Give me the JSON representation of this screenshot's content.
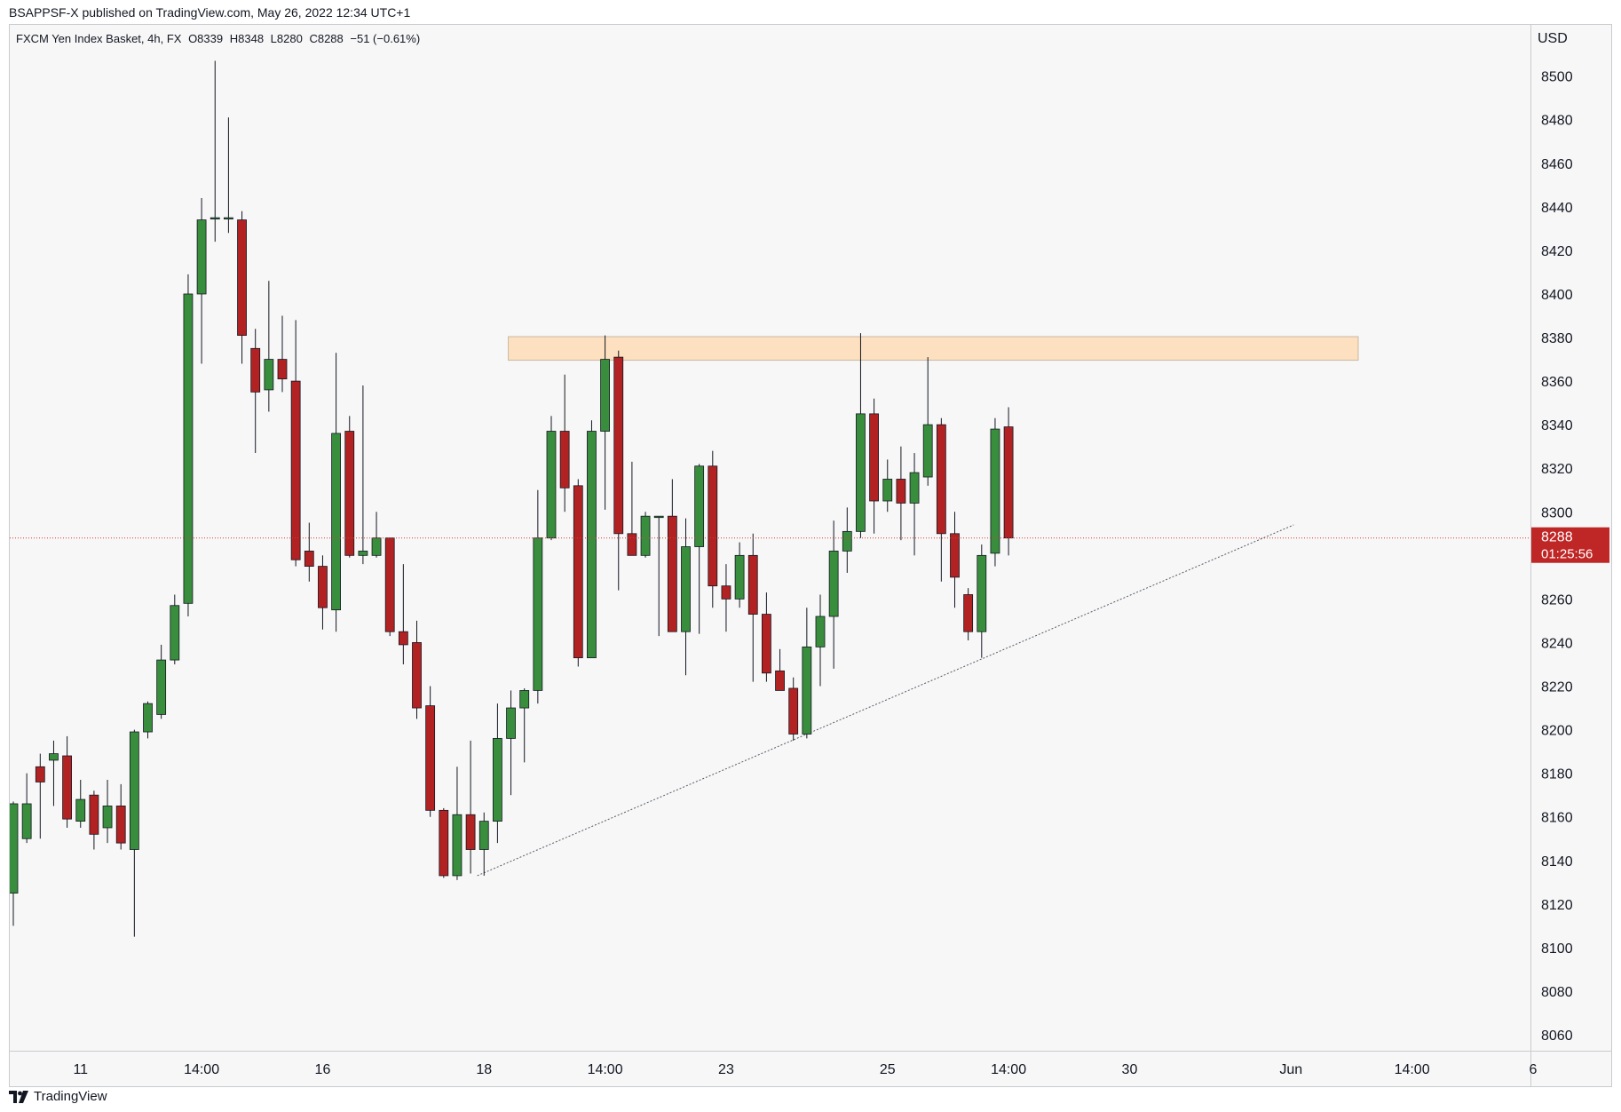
{
  "header": {
    "text": "BSAPPSF-X published on TradingView.com, May 26, 2022 12:34 UTC+1"
  },
  "legend": {
    "symbol": "FXCM Yen Index Basket, 4h, FX",
    "open": "O8339",
    "high": "H8348",
    "low": "L8280",
    "close": "C8288",
    "change": "−51 (−0.61%)"
  },
  "price_axis": {
    "currency": "USD"
  },
  "last_price": {
    "value": "8288",
    "countdown": "01:25:56"
  },
  "footer": {
    "brand": "TradingView"
  },
  "colors": {
    "up": "#388e3c",
    "down": "#b22222",
    "zone_fill": "#fde0bf",
    "zone_border": "#c9b8a3",
    "last_price_line": "#d43d3d",
    "background": "#f7f7f7"
  },
  "chart_data": {
    "type": "candlestick",
    "ylim": [
      8050,
      8520
    ],
    "y_ticks": [
      8060,
      8080,
      8100,
      8120,
      8140,
      8160,
      8180,
      8200,
      8220,
      8240,
      8260,
      8280,
      8300,
      8320,
      8340,
      8360,
      8380,
      8400,
      8420,
      8440,
      8460,
      8480,
      8500
    ],
    "x_ticks": [
      {
        "label": "11",
        "bar": 5
      },
      {
        "label": "14:00",
        "bar": 14
      },
      {
        "label": "16",
        "bar": 23
      },
      {
        "label": "18",
        "bar": 35
      },
      {
        "label": "14:00",
        "bar": 44
      },
      {
        "label": "23",
        "bar": 53
      },
      {
        "label": "25",
        "bar": 65
      },
      {
        "label": "14:00",
        "bar": 74
      },
      {
        "label": "30",
        "bar": 83
      },
      {
        "label": "Jun",
        "bar": 95
      },
      {
        "label": "14:00",
        "bar": 104
      },
      {
        "label": "6",
        "bar": 113
      }
    ],
    "candles": [
      {
        "o": 8125,
        "h": 8167,
        "l": 8110,
        "c": 8166
      },
      {
        "o": 8150,
        "h": 8180,
        "l": 8148,
        "c": 8166
      },
      {
        "o": 8183,
        "h": 8189,
        "l": 8150,
        "c": 8176
      },
      {
        "o": 8186,
        "h": 8195,
        "l": 8165,
        "c": 8189
      },
      {
        "o": 8188,
        "h": 8197,
        "l": 8155,
        "c": 8159
      },
      {
        "o": 8158,
        "h": 8177,
        "l": 8155,
        "c": 8168
      },
      {
        "o": 8170,
        "h": 8172,
        "l": 8145,
        "c": 8152
      },
      {
        "o": 8155,
        "h": 8177,
        "l": 8148,
        "c": 8165
      },
      {
        "o": 8165,
        "h": 8175,
        "l": 8145,
        "c": 8148
      },
      {
        "o": 8145,
        "h": 8200,
        "l": 8105,
        "c": 8199
      },
      {
        "o": 8199,
        "h": 8213,
        "l": 8196,
        "c": 8212
      },
      {
        "o": 8207,
        "h": 8239,
        "l": 8205,
        "c": 8232
      },
      {
        "o": 8232,
        "h": 8262,
        "l": 8230,
        "c": 8257
      },
      {
        "o": 8258,
        "h": 8409,
        "l": 8252,
        "c": 8400
      },
      {
        "o": 8400,
        "h": 8444,
        "l": 8368,
        "c": 8434
      },
      {
        "o": 8435,
        "h": 8507,
        "l": 8424,
        "c": 8435
      },
      {
        "o": 8435,
        "h": 8481,
        "l": 8428,
        "c": 8435
      },
      {
        "o": 8434,
        "h": 8438,
        "l": 8368,
        "c": 8381
      },
      {
        "o": 8375,
        "h": 8384,
        "l": 8327,
        "c": 8355
      },
      {
        "o": 8356,
        "h": 8406,
        "l": 8346,
        "c": 8370
      },
      {
        "o": 8370,
        "h": 8390,
        "l": 8355,
        "c": 8361
      },
      {
        "o": 8360,
        "h": 8388,
        "l": 8275,
        "c": 8278
      },
      {
        "o": 8282,
        "h": 8295,
        "l": 8268,
        "c": 8275
      },
      {
        "o": 8275,
        "h": 8280,
        "l": 8246,
        "c": 8256
      },
      {
        "o": 8255,
        "h": 8373,
        "l": 8245,
        "c": 8336
      },
      {
        "o": 8337,
        "h": 8344,
        "l": 8279,
        "c": 8280
      },
      {
        "o": 8280,
        "h": 8358,
        "l": 8276,
        "c": 8282
      },
      {
        "o": 8280,
        "h": 8300,
        "l": 8279,
        "c": 8288
      },
      {
        "o": 8288,
        "h": 8288,
        "l": 8243,
        "c": 8245
      },
      {
        "o": 8245,
        "h": 8276,
        "l": 8230,
        "c": 8239
      },
      {
        "o": 8240,
        "h": 8250,
        "l": 8205,
        "c": 8210
      },
      {
        "o": 8211,
        "h": 8220,
        "l": 8160,
        "c": 8163
      },
      {
        "o": 8163,
        "h": 8164,
        "l": 8132,
        "c": 8133
      },
      {
        "o": 8133,
        "h": 8183,
        "l": 8131,
        "c": 8161
      },
      {
        "o": 8161,
        "h": 8195,
        "l": 8134,
        "c": 8145
      },
      {
        "o": 8145,
        "h": 8162,
        "l": 8133,
        "c": 8158
      },
      {
        "o": 8158,
        "h": 8212,
        "l": 8148,
        "c": 8196
      },
      {
        "o": 8196,
        "h": 8218,
        "l": 8170,
        "c": 8210
      },
      {
        "o": 8210,
        "h": 8219,
        "l": 8185,
        "c": 8218
      },
      {
        "o": 8218,
        "h": 8310,
        "l": 8212,
        "c": 8288
      },
      {
        "o": 8288,
        "h": 8344,
        "l": 8287,
        "c": 8337
      },
      {
        "o": 8337,
        "h": 8363,
        "l": 8300,
        "c": 8311
      },
      {
        "o": 8312,
        "h": 8315,
        "l": 8229,
        "c": 8233
      },
      {
        "o": 8233,
        "h": 8342,
        "l": 8233,
        "c": 8337
      },
      {
        "o": 8337,
        "h": 8381,
        "l": 8301,
        "c": 8370
      },
      {
        "o": 8371,
        "h": 8374,
        "l": 8264,
        "c": 8290
      },
      {
        "o": 8290,
        "h": 8323,
        "l": 8283,
        "c": 8280
      },
      {
        "o": 8280,
        "h": 8300,
        "l": 8279,
        "c": 8298
      },
      {
        "o": 8298,
        "h": 8298,
        "l": 8243,
        "c": 8298
      },
      {
        "o": 8298,
        "h": 8315,
        "l": 8245,
        "c": 8245
      },
      {
        "o": 8245,
        "h": 8297,
        "l": 8225,
        "c": 8284
      },
      {
        "o": 8284,
        "h": 8322,
        "l": 8244,
        "c": 8321
      },
      {
        "o": 8321,
        "h": 8328,
        "l": 8256,
        "c": 8266
      },
      {
        "o": 8266,
        "h": 8276,
        "l": 8245,
        "c": 8260
      },
      {
        "o": 8260,
        "h": 8286,
        "l": 8256,
        "c": 8280
      },
      {
        "o": 8280,
        "h": 8290,
        "l": 8222,
        "c": 8253
      },
      {
        "o": 8253,
        "h": 8263,
        "l": 8222,
        "c": 8226
      },
      {
        "o": 8227,
        "h": 8237,
        "l": 8218,
        "c": 8218
      },
      {
        "o": 8219,
        "h": 8224,
        "l": 8195,
        "c": 8198
      },
      {
        "o": 8198,
        "h": 8256,
        "l": 8196,
        "c": 8238
      },
      {
        "o": 8238,
        "h": 8262,
        "l": 8220,
        "c": 8252
      },
      {
        "o": 8252,
        "h": 8296,
        "l": 8228,
        "c": 8282
      },
      {
        "o": 8282,
        "h": 8302,
        "l": 8272,
        "c": 8291
      },
      {
        "o": 8291,
        "h": 8382,
        "l": 8288,
        "c": 8345
      },
      {
        "o": 8345,
        "h": 8352,
        "l": 8290,
        "c": 8305
      },
      {
        "o": 8305,
        "h": 8324,
        "l": 8300,
        "c": 8315
      },
      {
        "o": 8315,
        "h": 8330,
        "l": 8287,
        "c": 8304
      },
      {
        "o": 8304,
        "h": 8327,
        "l": 8280,
        "c": 8318
      },
      {
        "o": 8316,
        "h": 8371,
        "l": 8312,
        "c": 8340
      },
      {
        "o": 8340,
        "h": 8343,
        "l": 8268,
        "c": 8290
      },
      {
        "o": 8290,
        "h": 8300,
        "l": 8256,
        "c": 8270
      },
      {
        "o": 8262,
        "h": 8265,
        "l": 8241,
        "c": 8245
      },
      {
        "o": 8245,
        "h": 8285,
        "l": 8233,
        "c": 8280
      },
      {
        "o": 8281,
        "h": 8343,
        "l": 8275,
        "c": 8338
      },
      {
        "o": 8339,
        "h": 8348,
        "l": 8280,
        "c": 8288
      }
    ],
    "resistance_zone": {
      "from_bar": 37,
      "to_bar": 100,
      "low": 8370,
      "high": 8380
    },
    "trendline": {
      "bar1": 34.5,
      "price1": 8133,
      "bar2": 95.2,
      "price2": 8294
    }
  }
}
